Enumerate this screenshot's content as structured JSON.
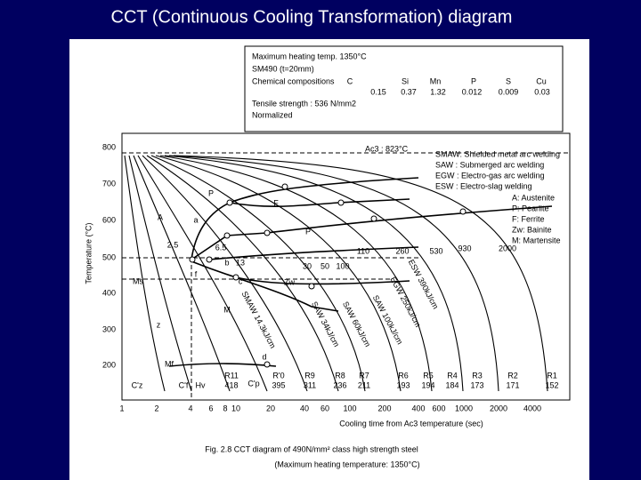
{
  "title": "CCT (Continuous Cooling Transformation) diagram",
  "info_box": {
    "heating": "Maximum heating temp. 1350°C",
    "steel": "SM490 (t=20mm)",
    "composition_label": "Chemical compositions",
    "elements": [
      "C",
      "Si",
      "Mn",
      "P",
      "S",
      "Cu"
    ],
    "amounts": [
      "0.15",
      "0.37",
      "1.32",
      "0.012",
      "0.009",
      "0.03"
    ],
    "tensile": "Tensile strength : 536 N/mm2",
    "treatment": "Normalized"
  },
  "ac3": "Ac3 : 823°C",
  "process_legend": [
    "SMAW: Shielded metal arc welding",
    "SAW  : Submerged arc welding",
    "EGW  : Electro-gas arc welding",
    "ESW  : Electro-slag welding"
  ],
  "phase_legend": [
    "A: Austenite",
    "P: Pearlite",
    "F: Ferrite",
    "Zw: Bainite",
    "M: Martensite"
  ],
  "y_axis": {
    "title": "Temperature (°C)",
    "ticks": [
      "800",
      "700",
      "600",
      "500",
      "400",
      "300",
      "200"
    ]
  },
  "x_axis": {
    "title": "Cooling time from Ac3 temperature (sec)",
    "ticks": [
      "1",
      "2",
      "4",
      "6",
      "8",
      "10",
      "20",
      "40",
      "60",
      "100",
      "200",
      "400",
      "600",
      "1000",
      "2000",
      "4000"
    ]
  },
  "region_labels": [
    "P",
    "F",
    "A",
    "a",
    "P",
    "b",
    "f",
    "c",
    "Ms",
    "Zw",
    "M",
    "z",
    "d",
    "Mf"
  ],
  "rate_labels": [
    "2.5",
    "6.5",
    "13",
    "30",
    "50",
    "100",
    "110",
    "260",
    "530",
    "930",
    "2000"
  ],
  "weld_labels": [
    "SMAW 14.3kJ/cm",
    "SAW 34kJ/cm",
    "SAW 60kJ/cm",
    "SAW 100kJ/cm",
    "EGW 250kJ/cm",
    "ESW 390kJ/cm"
  ],
  "specimens": [
    "R11",
    "R'0",
    "R9",
    "R8",
    "R7",
    "R6",
    "R5",
    "R4",
    "R3",
    "R2",
    "R1"
  ],
  "hardness": [
    "418",
    "395",
    "311",
    "236",
    "211",
    "193",
    "194",
    "184",
    "173",
    "171",
    "152"
  ],
  "phase_points": [
    "C'z",
    "C'f",
    "Hv",
    "C'p"
  ],
  "caption": [
    "Fig. 2.8 CCT diagram of 490N/mm² class high strength steel",
    "(Maximum heating temperature: 1350°C)"
  ]
}
